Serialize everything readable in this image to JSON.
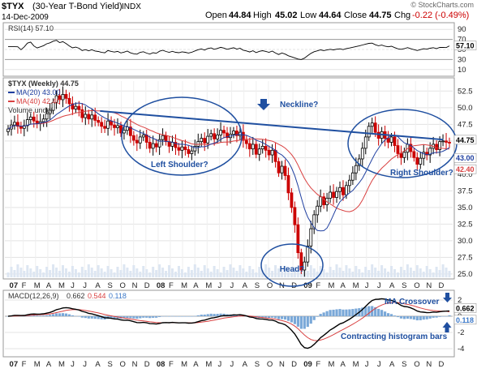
{
  "header": {
    "symbol": "$TYX",
    "name": "(30-Year T-Bond Yield)",
    "exchange": "INDX",
    "date": "14-Dec-2009",
    "open_label": "Open",
    "open": "44.84",
    "high_label": "High",
    "high": "45.02",
    "low_label": "Low",
    "low": "44.64",
    "close_label": "Close",
    "close": "44.75",
    "chg_label": "Chg",
    "chg": "-0.22 (-0.49%)",
    "watermark": "© StockCharts.com"
  },
  "rsi": {
    "title": "RSI(14) 57.10",
    "current_tag": "57.10",
    "ticks": [
      "90",
      "70",
      "50",
      "30",
      "10"
    ]
  },
  "price": {
    "title": "$TYX (Weekly) 44.75",
    "ma20_label": "MA(20) 43.00",
    "ma40_label": "MA(40) 42.40",
    "volume_label": "Volume undef",
    "ticks": [
      "52.5",
      "50.0",
      "47.5",
      "45.0",
      "42.5",
      "40.0",
      "37.5",
      "35.0",
      "32.5",
      "30.0",
      "27.5",
      "25.0"
    ],
    "tags": {
      "close": "44.75",
      "ma20": "43.00",
      "ma40": "42.40"
    }
  },
  "macd": {
    "title_prefix": "MACD(12,26,9)",
    "macd_value": "0.662",
    "signal_value": "0.544",
    "hist_value": "0.118",
    "ticks": [
      "2",
      "0",
      "-2",
      "-4"
    ],
    "tags": {
      "macd": "0.662",
      "hist": "0.118"
    }
  },
  "annotations": {
    "neckline": "Neckline?",
    "left_shoulder": "Left Shoulder?",
    "head": "Head?",
    "right_shoulder": "Right Shoulder?",
    "ma_crossover": "MA Crossover",
    "contracting": "Contracting histogram bars"
  },
  "x_axis": {
    "labels": [
      "07",
      "F",
      "M",
      "A",
      "M",
      "J",
      "J",
      "A",
      "S",
      "O",
      "N",
      "D",
      "08",
      "F",
      "M",
      "A",
      "M",
      "J",
      "J",
      "A",
      "S",
      "O",
      "N",
      "D",
      "09",
      "F",
      "M",
      "A",
      "M",
      "J",
      "J",
      "A",
      "S",
      "O",
      "N",
      "D"
    ]
  },
  "colors": {
    "up": "#000000",
    "down": "#cc0000",
    "ma20": "#1f3fa0",
    "ma40": "#d94040",
    "annotation": "#1f4fa0",
    "histogram": "#7aa8d8"
  },
  "chart_data": {
    "type": "candlestick",
    "x_unit": "week",
    "x_range": [
      "2007-01",
      "2009-12"
    ],
    "price_range": [
      24.5,
      54.0
    ],
    "closes": [
      46.8,
      47.4,
      47.8,
      47.2,
      46.9,
      47.3,
      48.2,
      48.6,
      48.0,
      47.6,
      47.9,
      48.3,
      49.1,
      49.6,
      50.8,
      51.8,
      51.2,
      52.0,
      51.4,
      50.6,
      49.8,
      50.2,
      49.7,
      48.5,
      49.0,
      48.3,
      48.9,
      48.1,
      47.8,
      47.2,
      46.9,
      48.0,
      47.4,
      47.0,
      47.3,
      46.2,
      46.6,
      47.1,
      45.8,
      45.1,
      44.7,
      45.6,
      45.9,
      44.8,
      43.9,
      44.6,
      44.1,
      45.2,
      45.8,
      44.9,
      44.2,
      44.8,
      44.0,
      43.6,
      44.1,
      43.7,
      43.1,
      43.5,
      44.2,
      44.9,
      45.4,
      44.7,
      45.7,
      46.1,
      45.3,
      45.9,
      46.6,
      46.2,
      45.5,
      46.0,
      46.5,
      45.8,
      46.3,
      45.1,
      44.6,
      43.8,
      44.5,
      43.0,
      43.8,
      44.2,
      43.6,
      42.9,
      43.6,
      41.9,
      40.2,
      41.2,
      39.8,
      37.2,
      35.0,
      32.4,
      28.2,
      25.6,
      26.8,
      29.2,
      31.8,
      33.9,
      35.2,
      36.6,
      35.4,
      36.4,
      37.3,
      36.5,
      37.4,
      38.0,
      36.9,
      38.3,
      39.1,
      40.2,
      41.3,
      42.3,
      43.9,
      45.6,
      47.2,
      47.7,
      46.3,
      45.4,
      46.4,
      45.4,
      44.8,
      45.6,
      44.3,
      43.1,
      42.5,
      43.3,
      44.5,
      43.4,
      42.5,
      41.5,
      42.4,
      43.3,
      42.9,
      43.9,
      44.5,
      43.7,
      44.9,
      45.0,
      44.8,
      44.75
    ],
    "ma20_end": 43.0,
    "ma40_end": 42.4,
    "neckline": {
      "from": [
        "2007-08",
        49.5
      ],
      "to": [
        "2009-12",
        45.2
      ]
    },
    "rsi_end": 57.1,
    "rsi_levels": [
      70,
      50,
      30
    ],
    "rsi_range": [
      0,
      100
    ],
    "macd_end": {
      "macd": 0.662,
      "signal": 0.544,
      "histogram": 0.118
    },
    "macd_range": [
      -4.8,
      3.0
    ]
  }
}
